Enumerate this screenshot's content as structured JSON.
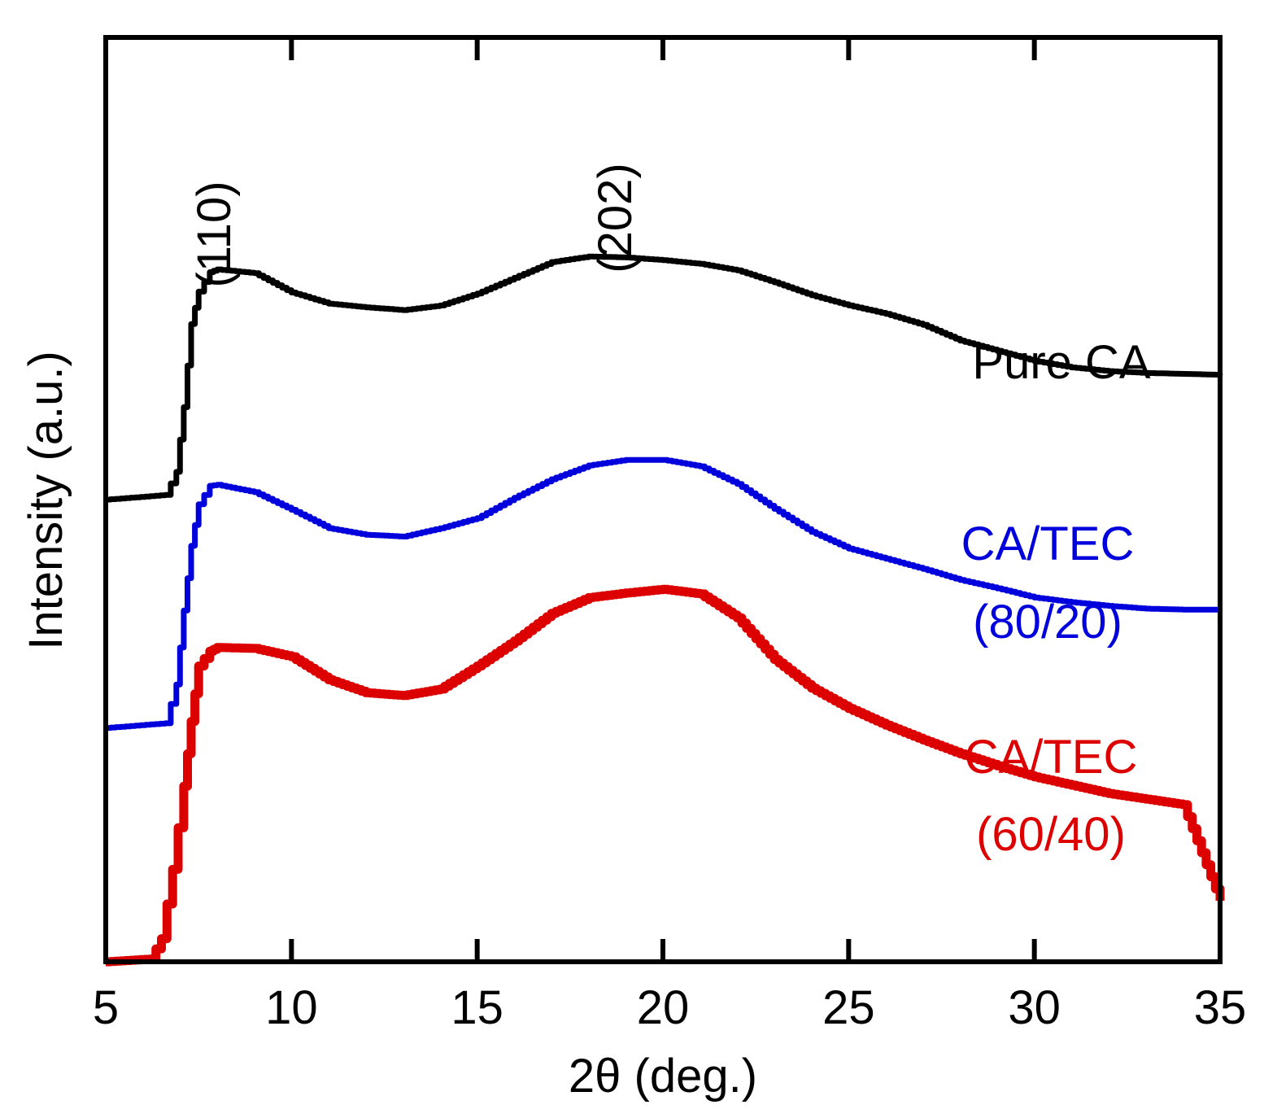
{
  "chart_data": {
    "type": "line",
    "title": "",
    "xlabel": "2θ (deg.)",
    "ylabel": "Intensity (a.u.)",
    "xlim": [
      5,
      35
    ],
    "ylim": [
      0,
      100
    ],
    "xticks": [
      5,
      10,
      15,
      20,
      25,
      30,
      35
    ],
    "xtick_labels": [
      "5",
      "10",
      "15",
      "20",
      "25",
      "30",
      "35"
    ],
    "grid": false,
    "y_tick_labels_shown": false,
    "annotations": [
      {
        "text": "(110)",
        "x": 7.8,
        "y": 75,
        "rotation": -90
      },
      {
        "text": "(202)",
        "x": 18.8,
        "y": 78,
        "rotation": -90
      }
    ],
    "series": [
      {
        "name": "Pure CA",
        "label_lines": [
          "Pure CA"
        ],
        "color": "#000000",
        "x": [
          5.0,
          6.6,
          6.9,
          7.1,
          7.3,
          7.5,
          7.8,
          8.0,
          9.0,
          10.0,
          11.0,
          12.0,
          13.0,
          14.0,
          15.0,
          16.0,
          17.0,
          18.0,
          19.0,
          20.0,
          21.0,
          22.0,
          23.0,
          24.0,
          25.0,
          26.0,
          27.0,
          28.0,
          29.0,
          30.0,
          31.0,
          32.0,
          33.0,
          34.0,
          35.0
        ],
        "values": [
          50.0,
          50.5,
          53.0,
          60.0,
          69.0,
          72.5,
          74.6,
          74.9,
          74.5,
          72.4,
          71.2,
          70.8,
          70.5,
          71.0,
          72.3,
          74.0,
          75.7,
          76.3,
          76.2,
          75.9,
          75.5,
          74.8,
          73.5,
          72.1,
          71.0,
          70.1,
          68.9,
          67.2,
          66.1,
          65.0,
          64.3,
          63.9,
          63.7,
          63.6,
          63.5
        ]
      },
      {
        "name": "CA/TEC (80/20)",
        "label_lines": [
          "CA/TEC",
          "(80/20)"
        ],
        "color": "#0000dd",
        "x": [
          5.0,
          6.6,
          6.9,
          7.1,
          7.3,
          7.5,
          7.8,
          8.0,
          9.0,
          10.0,
          11.0,
          12.0,
          13.0,
          14.0,
          15.0,
          16.0,
          17.0,
          18.0,
          19.0,
          20.0,
          21.0,
          22.0,
          23.0,
          24.0,
          25.0,
          26.0,
          27.0,
          28.0,
          29.0,
          30.0,
          31.0,
          32.0,
          33.0,
          34.0,
          35.0
        ],
        "values": [
          25.3,
          25.8,
          30.0,
          38.0,
          45.0,
          49.5,
          51.5,
          51.6,
          50.8,
          48.9,
          46.9,
          46.2,
          46.0,
          46.9,
          48.0,
          50.2,
          52.2,
          53.7,
          54.3,
          54.3,
          53.6,
          51.7,
          49.0,
          46.5,
          44.7,
          43.6,
          42.5,
          41.3,
          40.4,
          39.4,
          38.9,
          38.5,
          38.2,
          38.1,
          38.1
        ]
      },
      {
        "name": "CA/TEC (60/40)",
        "label_lines": [
          "CA/TEC",
          "(60/40)"
        ],
        "color": "#dd0000",
        "x": [
          5.0,
          6.2,
          6.5,
          6.8,
          7.1,
          7.3,
          7.5,
          7.8,
          8.0,
          9.0,
          10.0,
          11.0,
          12.0,
          13.0,
          14.0,
          15.0,
          16.0,
          17.0,
          18.0,
          19.0,
          20.0,
          21.0,
          22.0,
          23.0,
          24.0,
          25.0,
          26.0,
          27.0,
          28.0,
          29.0,
          30.0,
          31.0,
          32.0,
          33.0,
          34.0,
          35.0
        ],
        "values": [
          0.0,
          0.3,
          2.5,
          10.0,
          19.0,
          26.0,
          32.0,
          33.6,
          34.0,
          33.9,
          33.0,
          30.5,
          29.1,
          28.8,
          29.5,
          32.0,
          34.7,
          37.7,
          39.4,
          39.9,
          40.3,
          39.8,
          37.2,
          32.7,
          29.6,
          27.4,
          25.6,
          24.0,
          22.5,
          21.2,
          20.0,
          19.1,
          18.2,
          17.6,
          17.0,
          6.6
        ]
      }
    ]
  }
}
